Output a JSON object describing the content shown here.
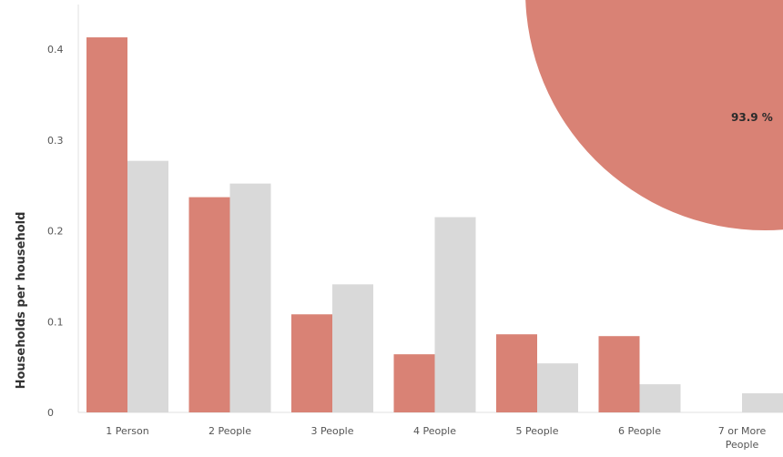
{
  "chart_data": [
    {
      "type": "bar",
      "ylabel": "Households per household",
      "ylim": [
        0,
        0.44
      ],
      "yticks": [
        "0",
        "0.1",
        "0.2",
        "0.3",
        "0.4"
      ],
      "categories": [
        "1 Person",
        "2 People",
        "3 People",
        "4 People",
        "5 People",
        "6 People",
        "7 or More People"
      ],
      "series": [
        {
          "values": [
            0.413,
            0.237,
            0.108,
            0.064,
            0.086,
            0.084,
            0.0
          ],
          "color": "#d98275"
        },
        {
          "values": [
            0.277,
            0.252,
            0.141,
            0.215,
            0.054,
            0.031,
            0.021
          ],
          "color": "#d9d9d9"
        }
      ],
      "grid": false
    },
    {
      "type": "pie",
      "slices": [
        {
          "label": "93.9 %",
          "value": 93.9,
          "color": "#d98275"
        }
      ]
    }
  ]
}
